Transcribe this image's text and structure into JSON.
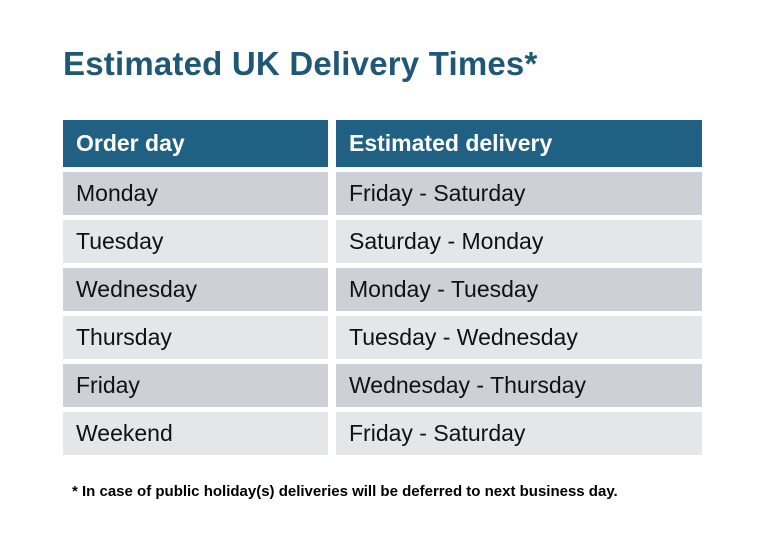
{
  "title": "Estimated UK Delivery Times*",
  "table": {
    "columns": [
      "Order day",
      "Estimated delivery"
    ],
    "rows": [
      {
        "order_day": "Monday",
        "estimated_delivery": "Friday - Saturday"
      },
      {
        "order_day": "Tuesday",
        "estimated_delivery": "Saturday - Monday"
      },
      {
        "order_day": "Wednesday",
        "estimated_delivery": "Monday - Tuesday"
      },
      {
        "order_day": "Thursday",
        "estimated_delivery": "Tuesday - Wednesday"
      },
      {
        "order_day": "Friday",
        "estimated_delivery": "Wednesday - Thursday"
      },
      {
        "order_day": "Weekend",
        "estimated_delivery": "Friday - Saturday"
      }
    ]
  },
  "footnote": "* In case of public holiday(s) deliveries will be deferred to next business day.",
  "colors": {
    "title": "#1F5876",
    "header_bg": "#206183",
    "header_text": "#FFFFFF",
    "row_odd_bg": "#CDD1D7",
    "row_even_bg": "#E4E7EA",
    "row_text": "#111111"
  }
}
